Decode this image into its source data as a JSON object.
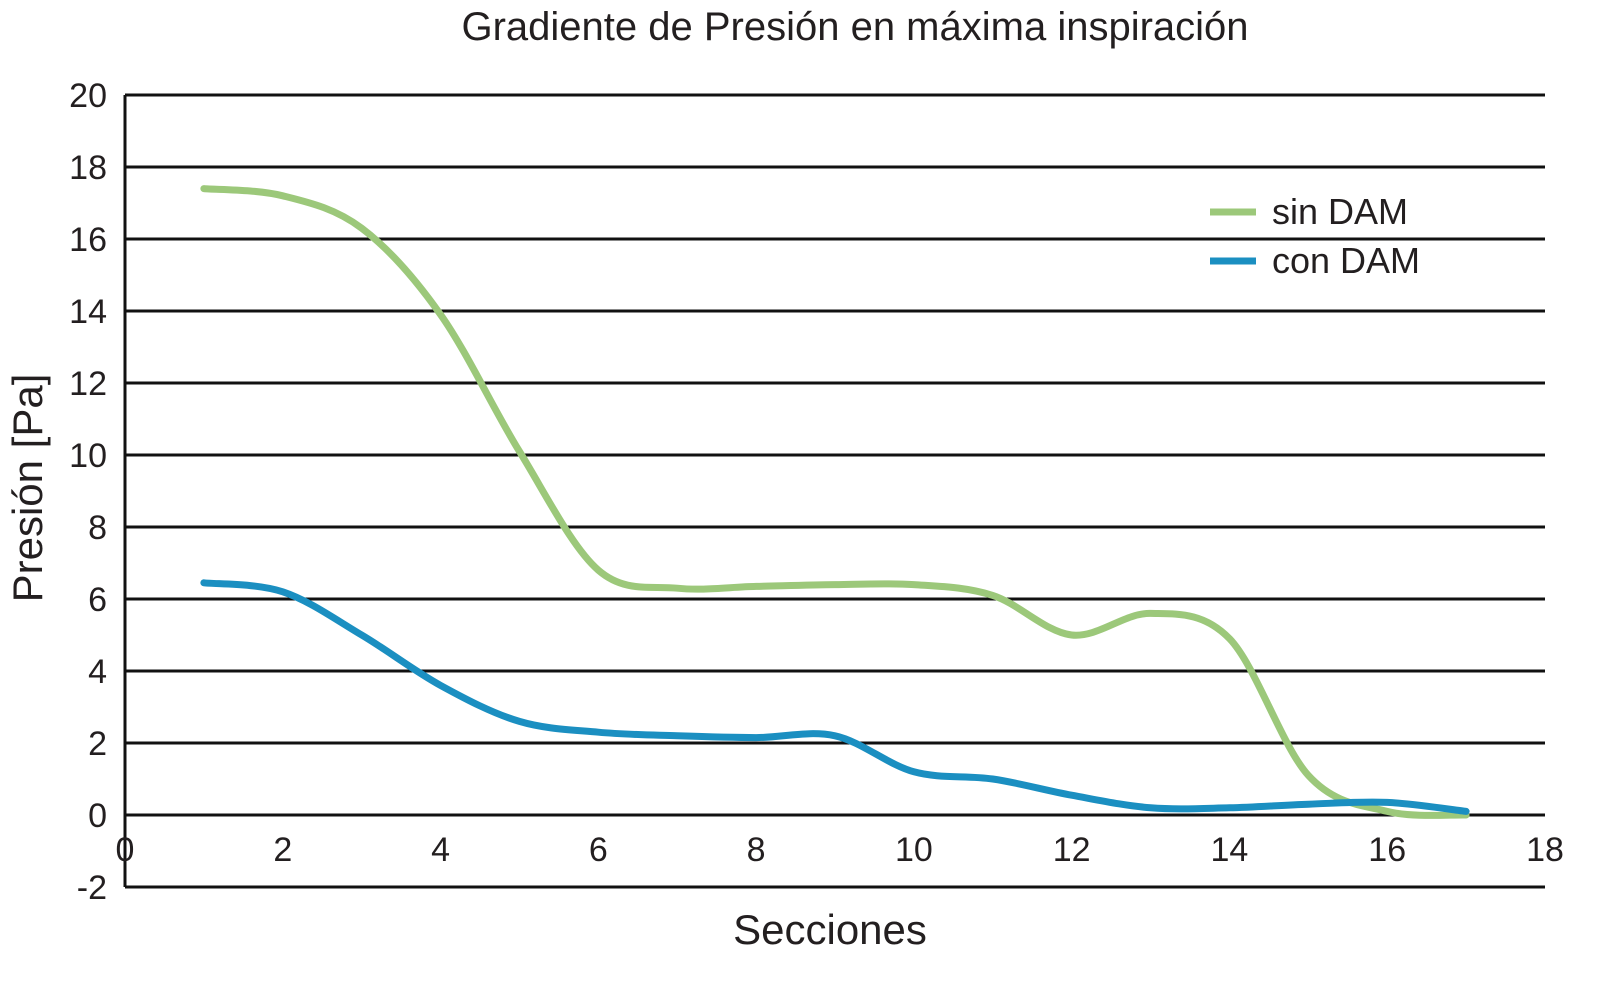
{
  "chart_data": {
    "type": "line",
    "title": "Gradiente de Presión en máxima inspiración",
    "xlabel": "Secciones",
    "ylabel": "Presión [Pa]",
    "xlim": [
      0,
      18
    ],
    "ylim": [
      -2,
      20
    ],
    "xticks": [
      0,
      2,
      4,
      6,
      8,
      10,
      12,
      14,
      16,
      18
    ],
    "yticks": [
      -2,
      0,
      2,
      4,
      6,
      8,
      10,
      12,
      14,
      16,
      18,
      20
    ],
    "grid": "horizontal",
    "legend_position": "top-right",
    "x": [
      1,
      2,
      3,
      4,
      5,
      6,
      7,
      8,
      9,
      10,
      11,
      12,
      13,
      14,
      15,
      16,
      17
    ],
    "series": [
      {
        "name": "sin DAM",
        "color": "#9cc87a",
        "values": [
          17.4,
          17.2,
          16.3,
          13.9,
          10.1,
          6.8,
          6.3,
          6.35,
          6.4,
          6.4,
          6.1,
          5.0,
          5.6,
          4.9,
          1.1,
          0.1,
          0.0
        ]
      },
      {
        "name": "con DAM",
        "color": "#1b8fc1",
        "values": [
          6.45,
          6.2,
          5.0,
          3.6,
          2.6,
          2.3,
          2.2,
          2.15,
          2.2,
          1.2,
          1.0,
          0.55,
          0.2,
          0.2,
          0.3,
          0.35,
          0.1
        ]
      }
    ]
  }
}
